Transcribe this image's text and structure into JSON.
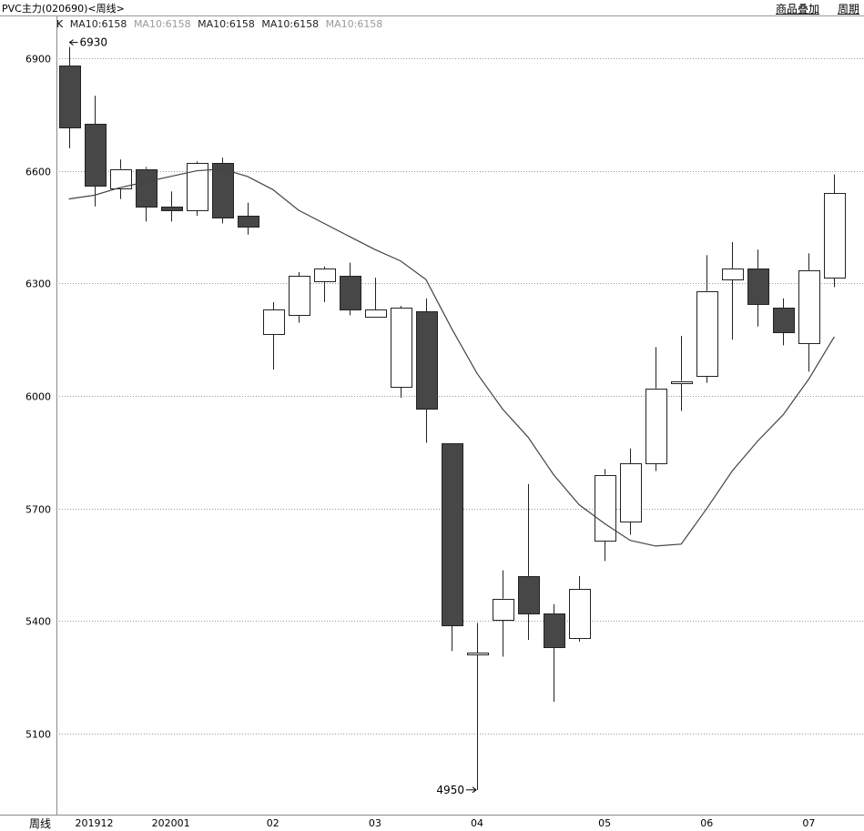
{
  "header": {
    "title": "PVC主力(020690)<周线>",
    "overlay_label": "商品叠加",
    "period_label": "周期"
  },
  "legend": {
    "series_label": "K",
    "ma_items": [
      {
        "label": "MA10:6158",
        "color": "#222222"
      },
      {
        "label": "MA10:6158",
        "color": "#9a9a9a"
      },
      {
        "label": "MA10:6158",
        "color": "#222222"
      },
      {
        "label": "MA10:6158",
        "color": "#222222"
      },
      {
        "label": "MA10:6158",
        "color": "#9a9a9a"
      }
    ]
  },
  "footer": {
    "period_axis_label": "周线"
  },
  "colors": {
    "bear": "#474747",
    "bull": "#ffffff",
    "line": "#444444",
    "grid": "#9a9a9a"
  },
  "chart_data": {
    "type": "candlestick",
    "yticks": [
      6900,
      6600,
      6300,
      6000,
      5700,
      5400,
      5100
    ],
    "ylim": [
      4880,
      6990
    ],
    "xtick_labels": [
      {
        "label": "201912",
        "index": 1
      },
      {
        "label": "202001",
        "index": 4
      },
      {
        "label": "02",
        "index": 8
      },
      {
        "label": "03",
        "index": 12
      },
      {
        "label": "04",
        "index": 16
      },
      {
        "label": "05",
        "index": 21
      },
      {
        "label": "06",
        "index": 25
      },
      {
        "label": "07",
        "index": 29
      }
    ],
    "candles": [
      {
        "open": 6880,
        "close": 6715,
        "high": 6930,
        "low": 6660
      },
      {
        "open": 6725,
        "close": 6560,
        "high": 6800,
        "low": 6505
      },
      {
        "open": 6555,
        "close": 6605,
        "high": 6630,
        "low": 6525
      },
      {
        "open": 6605,
        "close": 6505,
        "high": 6610,
        "low": 6465
      },
      {
        "open": 6505,
        "close": 6495,
        "high": 6545,
        "low": 6465
      },
      {
        "open": 6495,
        "close": 6620,
        "high": 6625,
        "low": 6480
      },
      {
        "open": 6620,
        "close": 6475,
        "high": 6635,
        "low": 6460
      },
      {
        "open": 6480,
        "close": 6450,
        "high": 6515,
        "low": 6430
      },
      {
        "open": 6165,
        "close": 6230,
        "high": 6250,
        "low": 6070
      },
      {
        "open": 6215,
        "close": 6320,
        "high": 6330,
        "low": 6195
      },
      {
        "open": 6305,
        "close": 6340,
        "high": 6345,
        "low": 6250
      },
      {
        "open": 6320,
        "close": 6230,
        "high": 6355,
        "low": 6215
      },
      {
        "open": 6210,
        "close": 6230,
        "high": 6315,
        "low": 6210
      },
      {
        "open": 6025,
        "close": 6235,
        "high": 6240,
        "low": 5995
      },
      {
        "open": 6225,
        "close": 5965,
        "high": 6260,
        "low": 5875
      },
      {
        "open": 5875,
        "close": 5390,
        "high": 5875,
        "low": 5320
      },
      {
        "open": 5310,
        "close": 5315,
        "high": 5395,
        "low": 4950
      },
      {
        "open": 5405,
        "close": 5460,
        "high": 5535,
        "low": 5305
      },
      {
        "open": 5520,
        "close": 5420,
        "high": 5765,
        "low": 5350
      },
      {
        "open": 5420,
        "close": 5330,
        "high": 5445,
        "low": 5185
      },
      {
        "open": 5355,
        "close": 5485,
        "high": 5520,
        "low": 5345
      },
      {
        "open": 5615,
        "close": 5790,
        "high": 5805,
        "low": 5560
      },
      {
        "open": 5665,
        "close": 5820,
        "high": 5860,
        "low": 5630
      },
      {
        "open": 5820,
        "close": 6020,
        "high": 6130,
        "low": 5800
      },
      {
        "open": 6035,
        "close": 6040,
        "high": 6160,
        "low": 5960
      },
      {
        "open": 6055,
        "close": 6280,
        "high": 6375,
        "low": 6035
      },
      {
        "open": 6310,
        "close": 6340,
        "high": 6410,
        "low": 6150
      },
      {
        "open": 6340,
        "close": 6245,
        "high": 6390,
        "low": 6185
      },
      {
        "open": 6235,
        "close": 6170,
        "high": 6260,
        "low": 6135
      },
      {
        "open": 6140,
        "close": 6335,
        "high": 6380,
        "low": 6065
      },
      {
        "open": 6315,
        "close": 6540,
        "high": 6590,
        "low": 6290
      }
    ],
    "ma": {
      "name": "MA10",
      "values": [
        6525,
        6535,
        6555,
        6570,
        6585,
        6600,
        6605,
        6585,
        6550,
        6495,
        6460,
        6425,
        6390,
        6360,
        6310,
        6180,
        6060,
        5965,
        5890,
        5790,
        5710,
        5660,
        5615,
        5600,
        5605,
        5700,
        5800,
        5880,
        5950,
        6045,
        6158
      ]
    },
    "annotations": [
      {
        "label": "6930",
        "index": 0,
        "value": 6930,
        "side": "right"
      },
      {
        "label": "4950",
        "index": 16,
        "value": 4950,
        "side": "left"
      }
    ]
  }
}
